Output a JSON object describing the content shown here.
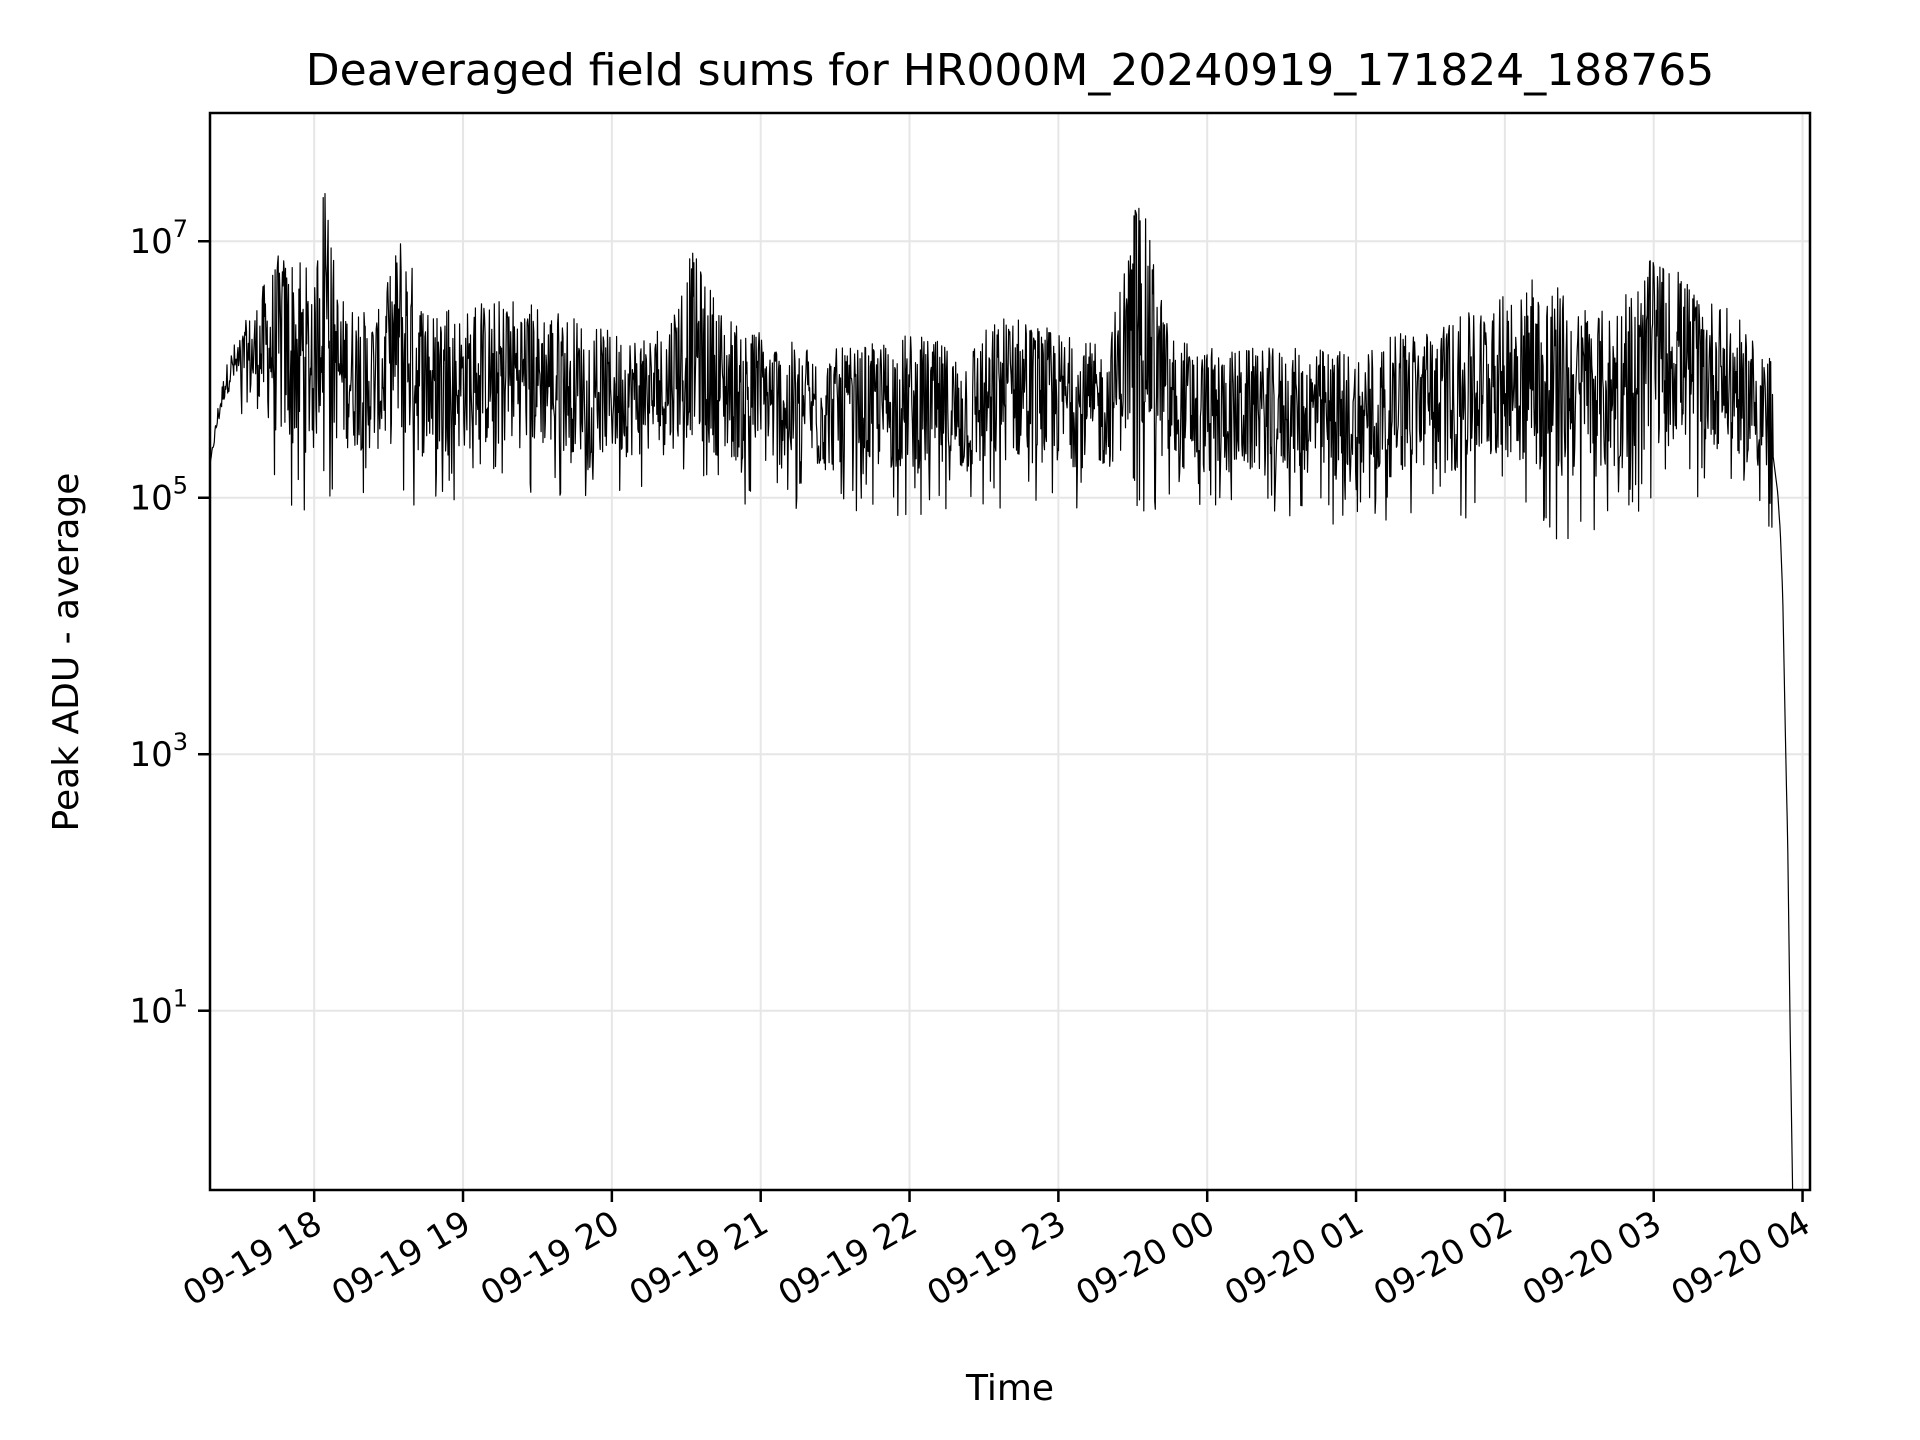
{
  "chart_data": {
    "type": "line",
    "title": "Deaveraged field sums for HR000M_20240919_171824_188765",
    "xlabel": "Time",
    "ylabel": "Peak ADU - average",
    "yscale": "log",
    "grid": true,
    "legend": "none",
    "line_color": "#000000",
    "grid_color": "#e6e6e6",
    "xlim": [
      "2024-09-19 17:18",
      "2024-09-20 04:03"
    ],
    "ylim": [
      0.4,
      100000000
    ],
    "x_ticks": [
      {
        "t": "2024-09-19 18:00",
        "label": "09-19 18"
      },
      {
        "t": "2024-09-19 19:00",
        "label": "09-19 19"
      },
      {
        "t": "2024-09-19 20:00",
        "label": "09-19 20"
      },
      {
        "t": "2024-09-19 21:00",
        "label": "09-19 21"
      },
      {
        "t": "2024-09-19 22:00",
        "label": "09-19 22"
      },
      {
        "t": "2024-09-19 23:00",
        "label": "09-19 23"
      },
      {
        "t": "2024-09-20 00:00",
        "label": "09-20 00"
      },
      {
        "t": "2024-09-20 01:00",
        "label": "09-20 01"
      },
      {
        "t": "2024-09-20 02:00",
        "label": "09-20 02"
      },
      {
        "t": "2024-09-20 03:00",
        "label": "09-20 03"
      },
      {
        "t": "2024-09-20 04:00",
        "label": "09-20 04"
      }
    ],
    "y_ticks": [
      {
        "value": 10,
        "base": "10",
        "exp": "1"
      },
      {
        "value": 1000,
        "base": "10",
        "exp": "3"
      },
      {
        "value": 100000,
        "base": "10",
        "exp": "5"
      },
      {
        "value": 10000000,
        "base": "10",
        "exp": "7"
      }
    ],
    "series": [
      {
        "x": [
          "2024-09-19 17:18",
          "2024-09-19 17:21",
          "2024-09-19 17:24",
          "2024-09-19 17:27",
          "2024-09-19 17:30",
          "2024-09-19 17:35",
          "2024-09-19 17:40",
          "2024-09-19 17:45",
          "2024-09-19 17:50",
          "2024-09-19 17:55",
          "2024-09-19 18:00",
          "2024-09-19 18:03",
          "2024-09-19 18:10",
          "2024-09-19 18:20",
          "2024-09-19 18:27",
          "2024-09-19 18:35",
          "2024-09-19 18:45",
          "2024-09-19 19:00",
          "2024-09-19 19:20",
          "2024-09-19 19:40",
          "2024-09-19 20:00",
          "2024-09-19 20:20",
          "2024-09-19 20:32",
          "2024-09-19 20:45",
          "2024-09-19 21:00",
          "2024-09-19 21:20",
          "2024-09-19 21:40",
          "2024-09-19 22:00",
          "2024-09-19 22:20",
          "2024-09-19 22:40",
          "2024-09-19 23:00",
          "2024-09-19 23:20",
          "2024-09-19 23:32",
          "2024-09-19 23:45",
          "2024-09-20 00:00",
          "2024-09-20 00:20",
          "2024-09-20 00:40",
          "2024-09-20 01:00",
          "2024-09-20 01:20",
          "2024-09-20 01:40",
          "2024-09-20 02:00",
          "2024-09-20 02:10",
          "2024-09-20 02:20",
          "2024-09-20 02:30",
          "2024-09-20 02:45",
          "2024-09-20 03:00",
          "2024-09-20 03:15",
          "2024-09-20 03:30",
          "2024-09-20 03:40",
          "2024-09-20 03:45",
          "2024-09-20 03:48",
          "2024-09-20 03:50",
          "2024-09-20 03:51",
          "2024-09-20 03:52",
          "2024-09-20 03:53",
          "2024-09-20 03:54",
          "2024-09-20 03:55",
          "2024-09-20 03:56"
        ],
        "high": [
          180000,
          500000,
          1000000,
          1500000,
          2000000,
          3000000,
          5000000,
          8000000,
          9000000,
          9000000,
          4000000,
          40000000,
          4000000,
          3000000,
          3000000,
          14000000,
          3000000,
          3000000,
          4000000,
          3000000,
          2000000,
          2000000,
          9000000,
          3000000,
          2000000,
          1500000,
          1500000,
          2000000,
          1500000,
          3000000,
          2000000,
          1500000,
          30000000,
          2000000,
          1500000,
          1500000,
          1500000,
          1500000,
          2000000,
          2500000,
          4000000,
          5000000,
          5000000,
          3000000,
          3000000,
          8000000,
          5000000,
          3000000,
          2000000,
          1500000,
          1200000,
          600000,
          300000,
          200000,
          10000,
          2000,
          50,
          0.4
        ],
        "low": [
          180000,
          300000,
          500000,
          600000,
          400000,
          300000,
          200000,
          100000,
          70000,
          70000,
          80000,
          100000,
          100000,
          100000,
          100000,
          80000,
          80000,
          100000,
          100000,
          100000,
          100000,
          100000,
          100000,
          80000,
          80000,
          70000,
          80000,
          70000,
          60000,
          80000,
          80000,
          80000,
          80000,
          70000,
          70000,
          70000,
          70000,
          50000,
          70000,
          60000,
          80000,
          60000,
          40000,
          50000,
          60000,
          80000,
          100000,
          100000,
          80000,
          60000,
          40000,
          20000,
          10000,
          1500,
          300,
          20,
          1,
          0.4
        ]
      }
    ]
  }
}
